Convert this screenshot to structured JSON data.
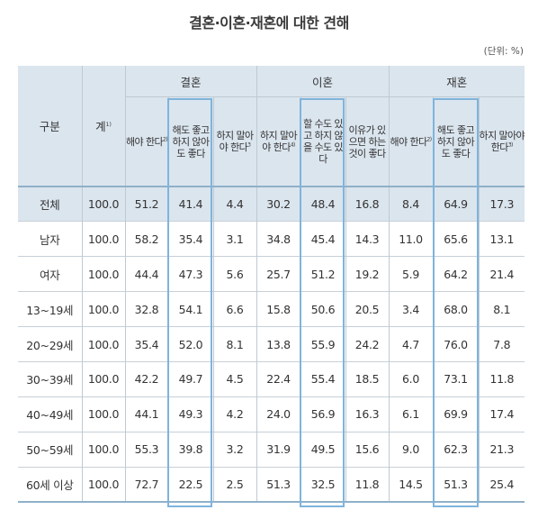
{
  "title": "결혼·이혼·재혼에 대한 견해",
  "unit": "(단위: %)",
  "header": {
    "category": "구분",
    "total": "계",
    "total_note": "1)",
    "groups": [
      "결혼",
      "이혼",
      "재혼"
    ],
    "sub": [
      {
        "label": "해야 한다",
        "note": "2)"
      },
      {
        "label": "해도 좋고 하지 않아도 좋다",
        "note": ""
      },
      {
        "label": "하지 말아야 한다",
        "note": "3"
      },
      {
        "label": "하지 말아야 한다",
        "note": "4)"
      },
      {
        "label": "할 수도 있고 하지 않을 수도 있다",
        "note": ""
      },
      {
        "label": "이유가 있으면 하는 것이 좋다",
        "note": ""
      },
      {
        "label": "해야 한다",
        "note": "2)"
      },
      {
        "label": "해도 좋고 하지 않아도 좋다",
        "note": ""
      },
      {
        "label": "하지 말아야 한다",
        "note": "3)"
      }
    ]
  },
  "rows": [
    {
      "label": "전체",
      "values": [
        "100.0",
        "51.2",
        "41.4",
        "4.4",
        "30.2",
        "48.4",
        "16.8",
        "8.4",
        "64.9",
        "17.3"
      ]
    },
    {
      "label": "남자",
      "values": [
        "100.0",
        "58.2",
        "35.4",
        "3.1",
        "34.8",
        "45.4",
        "14.3",
        "11.0",
        "65.6",
        "13.1"
      ]
    },
    {
      "label": "여자",
      "values": [
        "100.0",
        "44.4",
        "47.3",
        "5.6",
        "25.7",
        "51.2",
        "19.2",
        "5.9",
        "64.2",
        "21.4"
      ]
    },
    {
      "label": "13~19세",
      "values": [
        "100.0",
        "32.8",
        "54.1",
        "6.6",
        "15.8",
        "50.6",
        "20.5",
        "3.4",
        "68.0",
        "8.1"
      ]
    },
    {
      "label": "20~29세",
      "values": [
        "100.0",
        "35.4",
        "52.0",
        "8.1",
        "13.8",
        "55.9",
        "24.2",
        "4.7",
        "76.0",
        "7.8"
      ]
    },
    {
      "label": "30~39세",
      "values": [
        "100.0",
        "42.2",
        "49.7",
        "4.5",
        "22.4",
        "55.4",
        "18.5",
        "6.0",
        "73.1",
        "11.8"
      ]
    },
    {
      "label": "40~49세",
      "values": [
        "100.0",
        "44.1",
        "49.3",
        "4.2",
        "24.0",
        "56.9",
        "16.3",
        "6.1",
        "69.9",
        "17.4"
      ]
    },
    {
      "label": "50~59세",
      "values": [
        "100.0",
        "55.3",
        "39.8",
        "3.2",
        "31.9",
        "49.5",
        "15.6",
        "9.0",
        "62.3",
        "21.3"
      ]
    },
    {
      "label": "60세 이상",
      "values": [
        "100.0",
        "72.7",
        "22.5",
        "2.5",
        "51.3",
        "32.5",
        "11.8",
        "14.5",
        "51.3",
        "25.4"
      ]
    }
  ],
  "colors": {
    "header_bg": "#dbe5ee",
    "highlight_border": "#7fb4dc",
    "rule": "#8fb0c9"
  }
}
